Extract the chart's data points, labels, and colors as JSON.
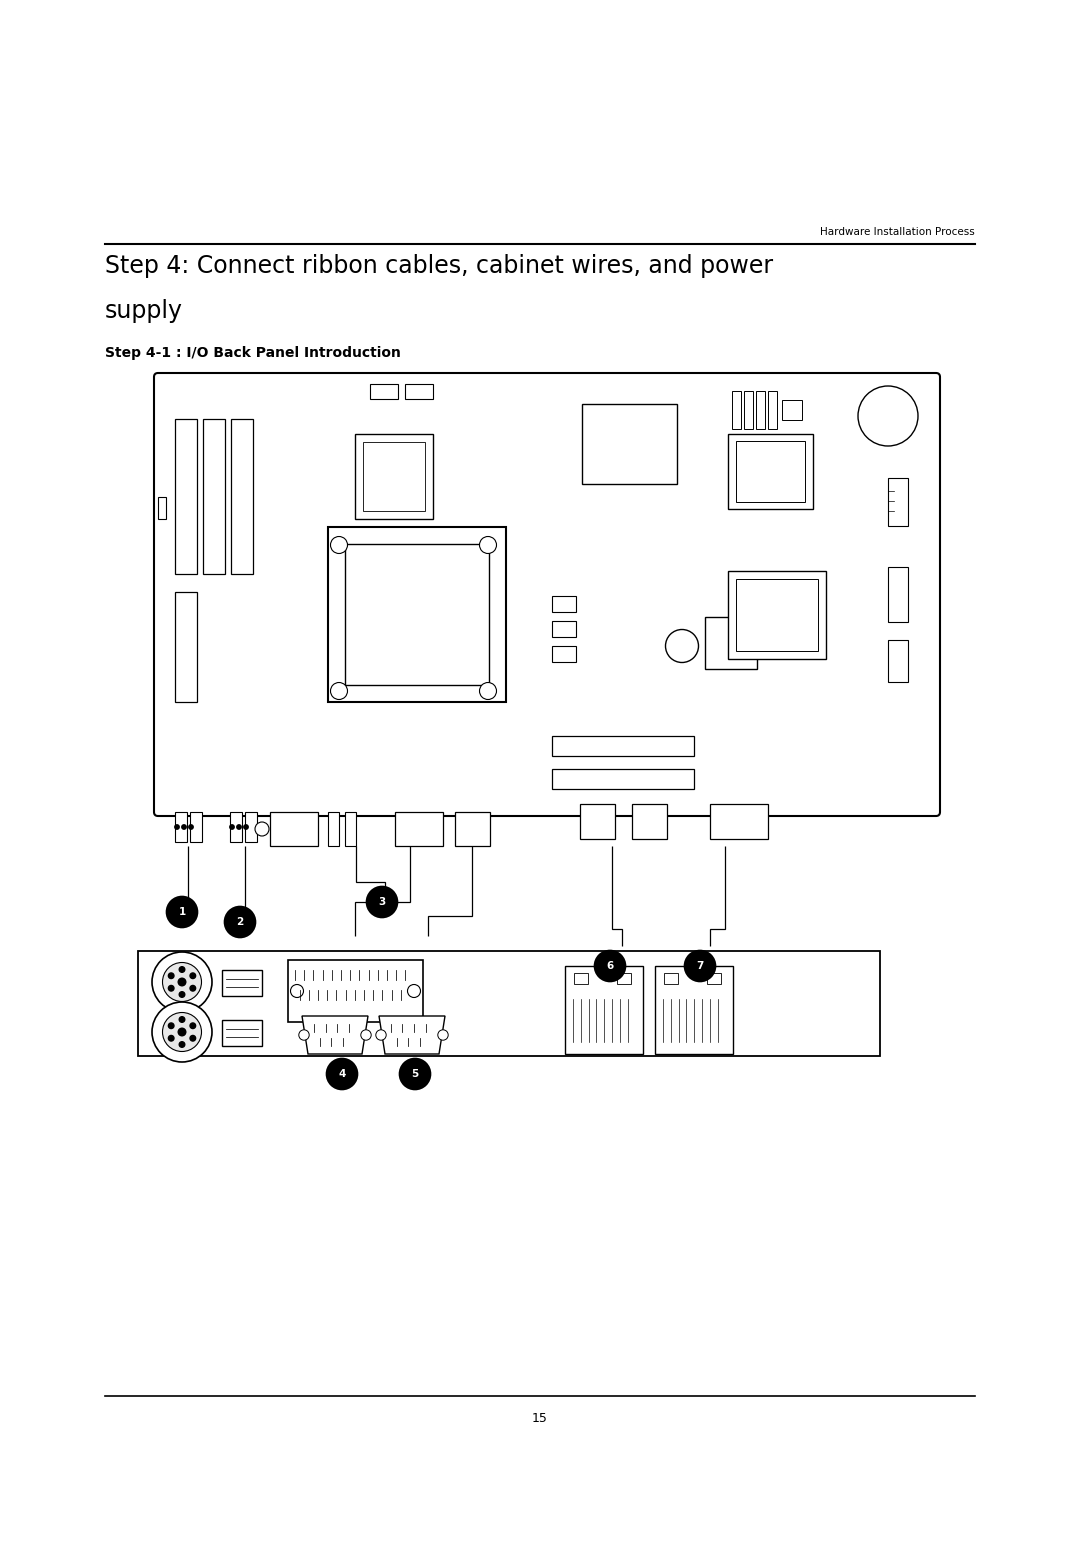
{
  "page_title_line1": "Step 4: Connect ribbon cables, cabinet wires, and power",
  "page_title_line2": "supply",
  "header_right": "Hardware Installation Process",
  "subtitle": "Step 4-1 : I/O Back Panel Introduction",
  "page_number": "15",
  "bg_color": "#ffffff",
  "text_color": "#000000",
  "line_color": "#000000"
}
